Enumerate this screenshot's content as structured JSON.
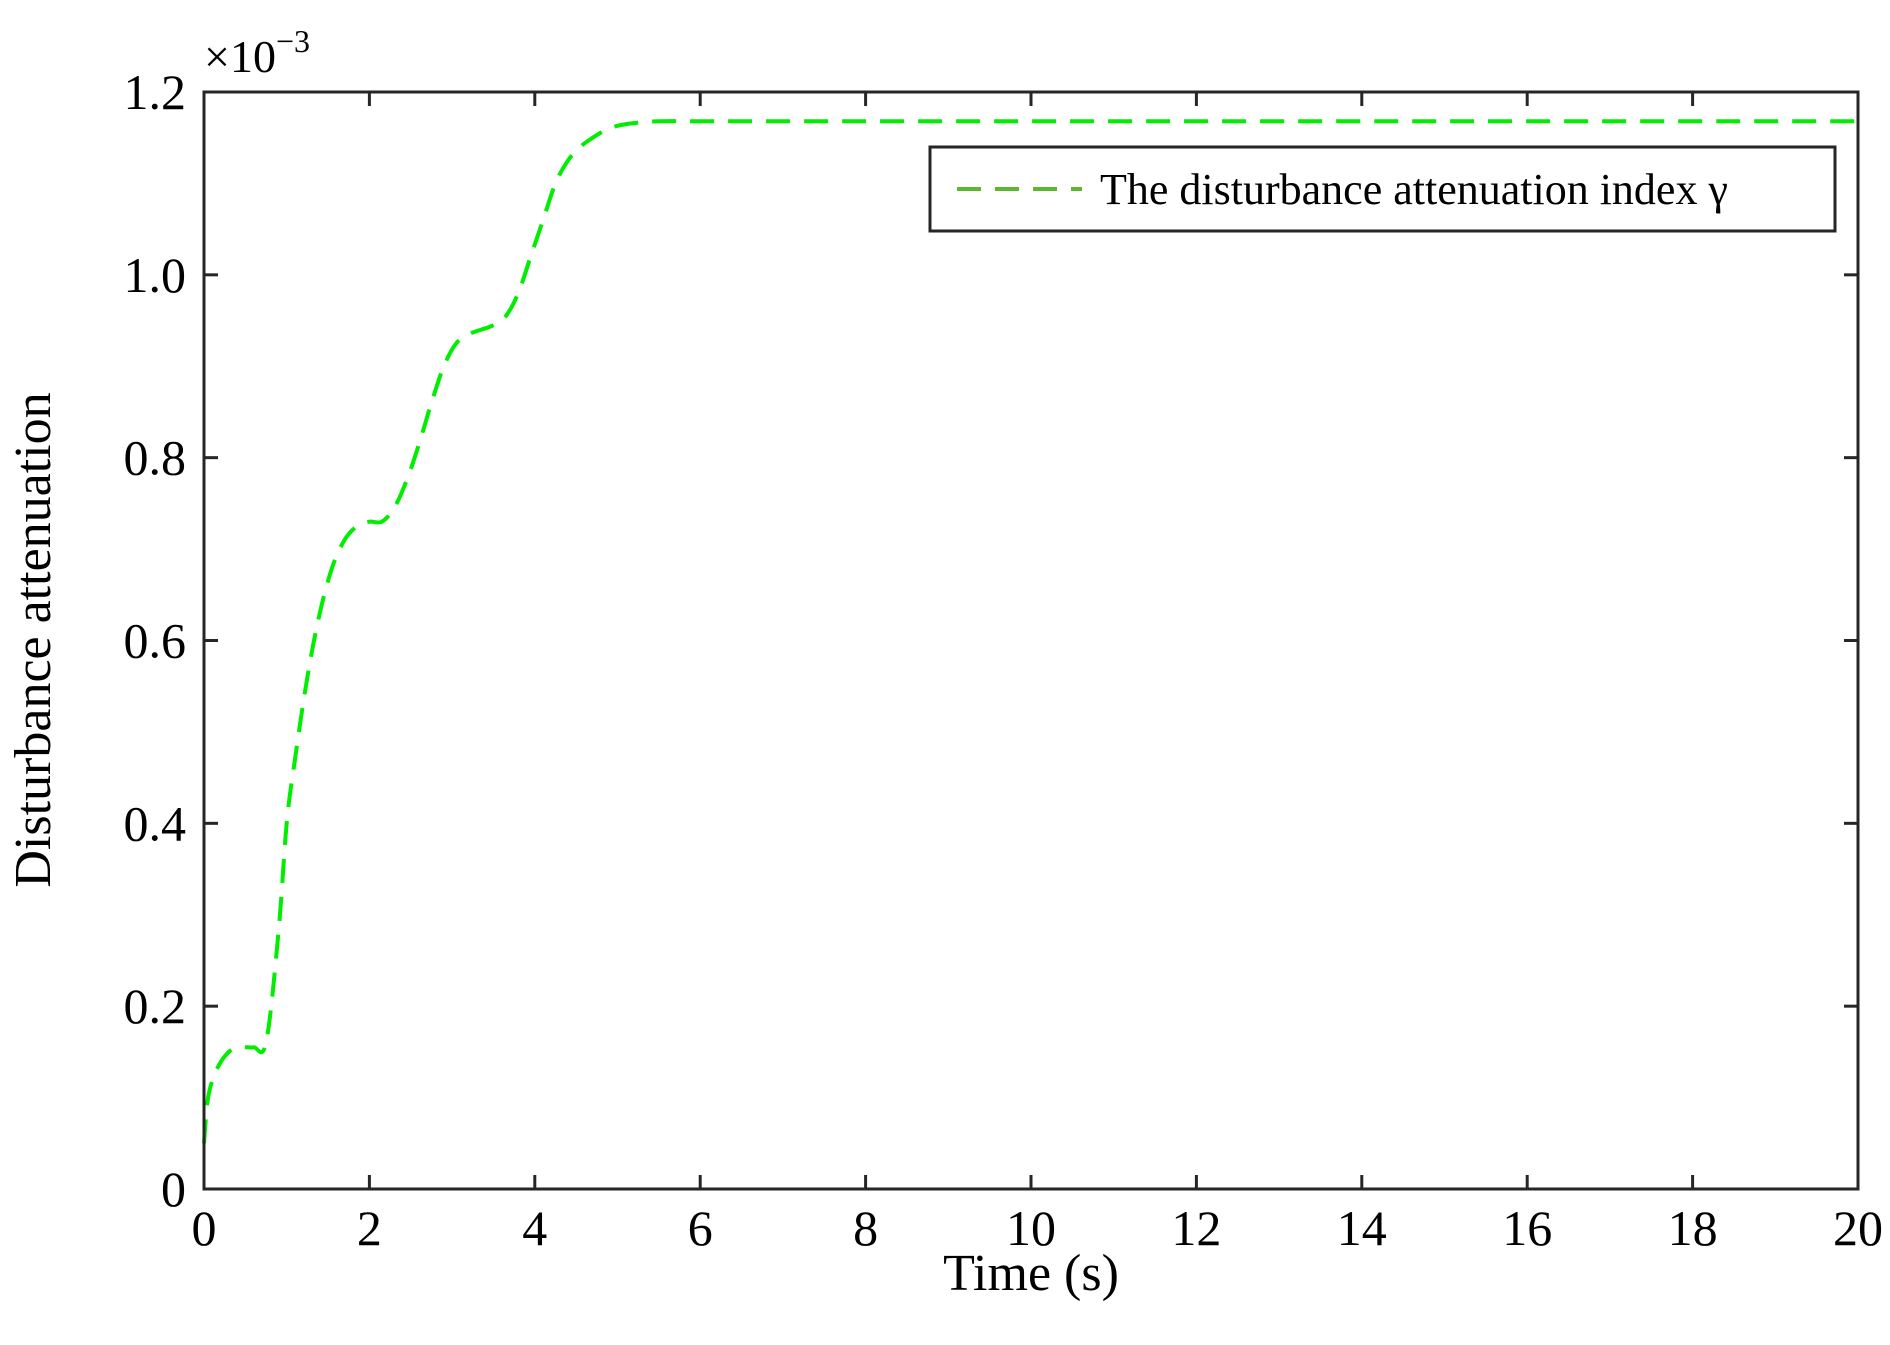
{
  "chart_data": {
    "type": "line",
    "title": "",
    "xlabel": "Time (s)",
    "ylabel": "Disturbance attenuation",
    "xlim": [
      0,
      20
    ],
    "ylim": [
      0,
      1.2
    ],
    "y_multiplier": {
      "base": "×10",
      "exponent": "−3"
    },
    "x_ticks": [
      "0",
      "2",
      "4",
      "6",
      "8",
      "10",
      "12",
      "14",
      "16",
      "18",
      "20"
    ],
    "y_ticks": [
      "0",
      "0.2",
      "0.4",
      "0.6",
      "0.8",
      "1.0",
      "1.2"
    ],
    "x_tick_values": [
      0,
      2,
      4,
      6,
      8,
      10,
      12,
      14,
      16,
      18,
      20
    ],
    "y_tick_values": [
      0,
      0.2,
      0.4,
      0.6,
      0.8,
      1.0,
      1.2
    ],
    "grid": false,
    "legend": {
      "position": "top-right"
    },
    "series": [
      {
        "name": "The disturbance attenuation index γ",
        "color": "#00ee00",
        "line_style": "dashed",
        "x": [
          0,
          0.05,
          0.15,
          0.3,
          0.45,
          0.6,
          0.75,
          0.9,
          1.0,
          1.1,
          1.25,
          1.4,
          1.55,
          1.7,
          1.85,
          2.0,
          2.15,
          2.3,
          2.45,
          2.6,
          2.75,
          2.9,
          3.05,
          3.2,
          3.35,
          3.5,
          3.65,
          3.8,
          3.95,
          4.1,
          4.25,
          4.4,
          4.55,
          4.7,
          4.85,
          5.0,
          5.2,
          5.5,
          6.0,
          7.0,
          10.0,
          15.0,
          20.0
        ],
        "y": [
          0.05,
          0.1,
          0.13,
          0.15,
          0.155,
          0.155,
          0.16,
          0.28,
          0.4,
          0.47,
          0.56,
          0.63,
          0.68,
          0.71,
          0.725,
          0.73,
          0.73,
          0.745,
          0.775,
          0.815,
          0.86,
          0.9,
          0.925,
          0.935,
          0.94,
          0.945,
          0.955,
          0.98,
          1.02,
          1.06,
          1.1,
          1.125,
          1.14,
          1.15,
          1.158,
          1.163,
          1.166,
          1.168,
          1.168,
          1.168,
          1.168,
          1.168,
          1.168
        ]
      }
    ]
  }
}
